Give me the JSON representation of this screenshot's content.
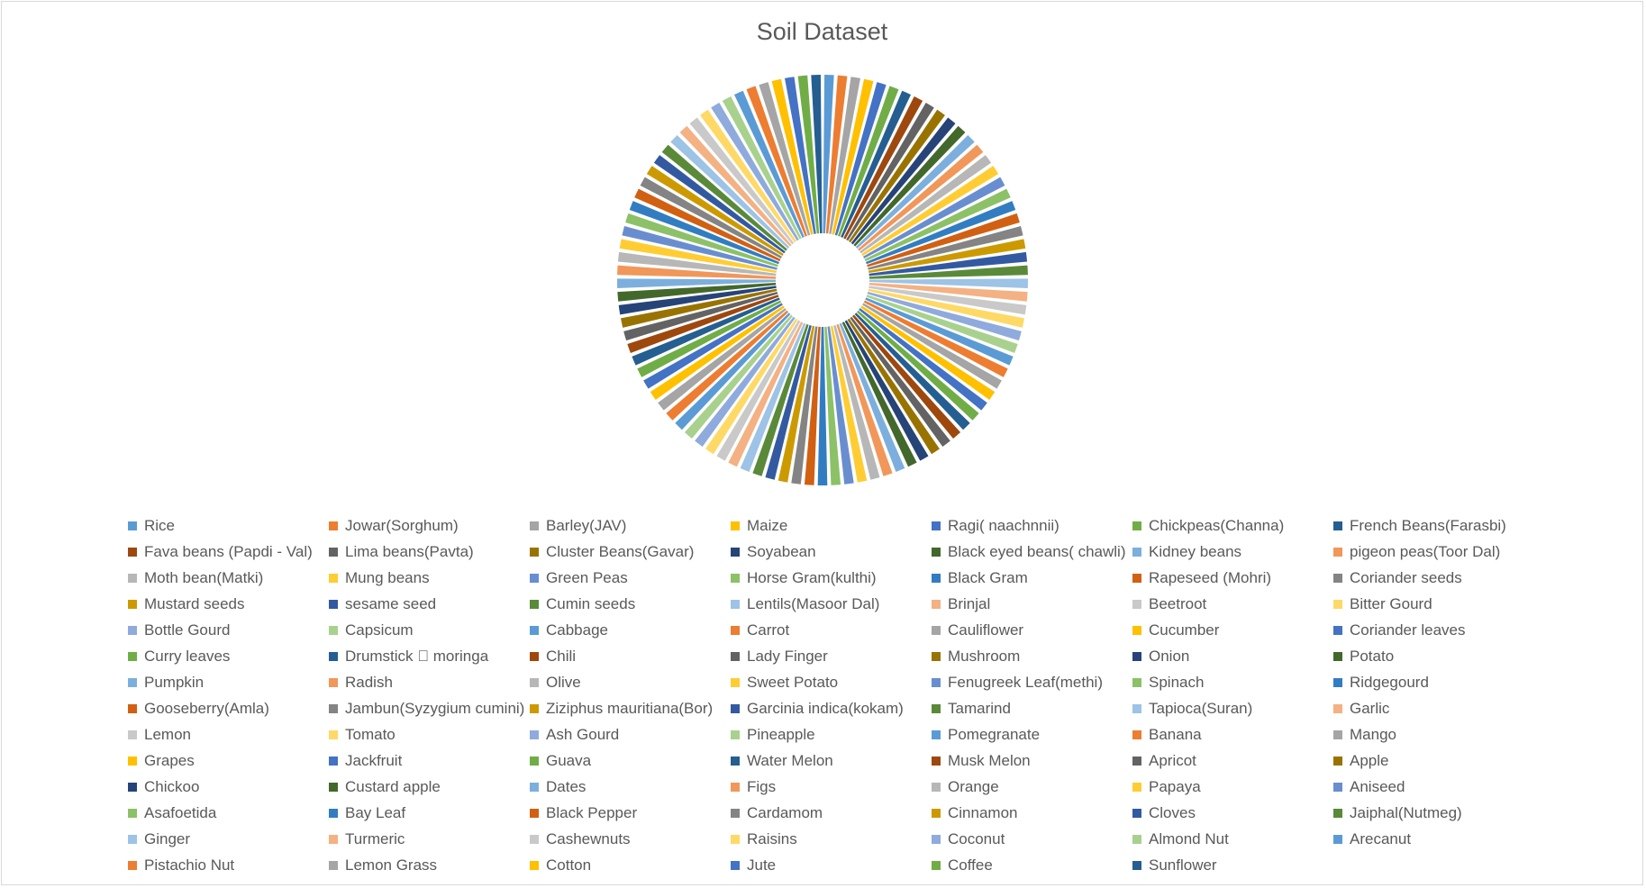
{
  "chart_data": {
    "type": "pie",
    "variant": "exploded-sunburst",
    "title": "Soil Dataset",
    "legend_position": "bottom",
    "palette": [
      "#5b9bd5",
      "#ed7d31",
      "#a5a5a5",
      "#ffc000",
      "#4472c4",
      "#70ad47",
      "#255e91",
      "#9e480e",
      "#636363",
      "#997300",
      "#264478",
      "#43682b",
      "#7cafdd",
      "#f1975a",
      "#b7b7b7",
      "#ffcd33",
      "#698ed0",
      "#8cc168",
      "#327dc2",
      "#d26012",
      "#848484",
      "#cc9a00",
      "#335aa1",
      "#5a8a39",
      "#9dc3e6",
      "#f4b183",
      "#c9c9c9",
      "#ffd966",
      "#8faadc",
      "#a9d18e"
    ],
    "categories": [
      "Rice",
      "Jowar(Sorghum)",
      "Barley(JAV)",
      "Maize",
      "Ragi( naachnnii)",
      "Chickpeas(Channa)",
      "French Beans(Farasbi)",
      "Fava beans (Papdi - Val)",
      "Lima beans(Pavta)",
      "Cluster Beans(Gavar)",
      "Soyabean",
      "Black eyed beans( chawli)",
      "Kidney beans",
      "pigeon peas(Toor Dal)",
      "Moth bean(Matki)",
      "Mung beans",
      "Green Peas",
      "Horse Gram(kulthi)",
      "Black Gram",
      "Rapeseed (Mohri)",
      "Coriander seeds",
      "Mustard seeds",
      "sesame seed",
      "Cumin seeds",
      "Lentils(Masoor Dal)",
      "Brinjal",
      "Beetroot",
      "Bitter Gourd",
      "Bottle Gourd",
      "Capsicum",
      "Cabbage",
      "Carrot",
      "Cauliflower",
      "Cucumber",
      "Coriander leaves",
      "Curry leaves",
      "Drumstick \u0000 moringa",
      "Chili",
      "Lady Finger",
      "Mushroom",
      "Onion",
      "Potato",
      "Pumpkin",
      "Radish",
      "Olive",
      "Sweet Potato",
      "Fenugreek Leaf(methi)",
      "Spinach",
      "Ridgegourd",
      "Gooseberry(Amla)",
      "Jambun(Syzygium cumini)",
      "Ziziphus mauritiana(Bor)",
      "Garcinia indica(kokam)",
      "Tamarind",
      "Tapioca(Suran)",
      "Garlic",
      "Lemon",
      "Tomato",
      "Ash Gourd",
      "Pineapple",
      "Pomegranate",
      "Banana",
      "Mango",
      "Grapes",
      "Jackfruit",
      "Guava",
      "Water Melon",
      "Musk Melon",
      "Apricot",
      "Apple",
      "Chickoo",
      "Custard apple",
      "Dates",
      "Figs",
      "Orange",
      "Papaya",
      "Aniseed",
      "Asafoetida",
      "Bay Leaf",
      "Black Pepper",
      "Cardamom",
      "Cinnamon",
      "Cloves",
      "Jaiphal(Nutmeg)",
      "Ginger",
      "Turmeric",
      "Cashewnuts",
      "Raisins",
      "Coconut",
      "Almond Nut",
      "Arecanut",
      "Pistachio Nut",
      "Lemon Grass",
      "Cotton",
      "Jute",
      "Coffee",
      "Sunflower"
    ],
    "values": [
      1,
      1,
      1,
      1,
      1,
      1,
      1,
      1,
      1,
      1,
      1,
      1,
      1,
      1,
      1,
      1,
      1,
      1,
      1,
      1,
      1,
      1,
      1,
      1,
      1,
      1,
      1,
      1,
      1,
      1,
      1,
      1,
      1,
      1,
      1,
      1,
      1,
      1,
      1,
      1,
      1,
      1,
      1,
      1,
      1,
      1,
      1,
      1,
      1,
      1,
      1,
      1,
      1,
      1,
      1,
      1,
      1,
      1,
      1,
      1,
      1,
      1,
      1,
      1,
      1,
      1,
      1,
      1,
      1,
      1,
      1,
      1,
      1,
      1,
      1,
      1,
      1,
      1,
      1,
      1,
      1,
      1,
      1,
      1,
      1,
      1,
      1,
      1,
      1,
      1,
      1,
      1,
      1,
      1,
      1,
      1,
      1
    ]
  }
}
